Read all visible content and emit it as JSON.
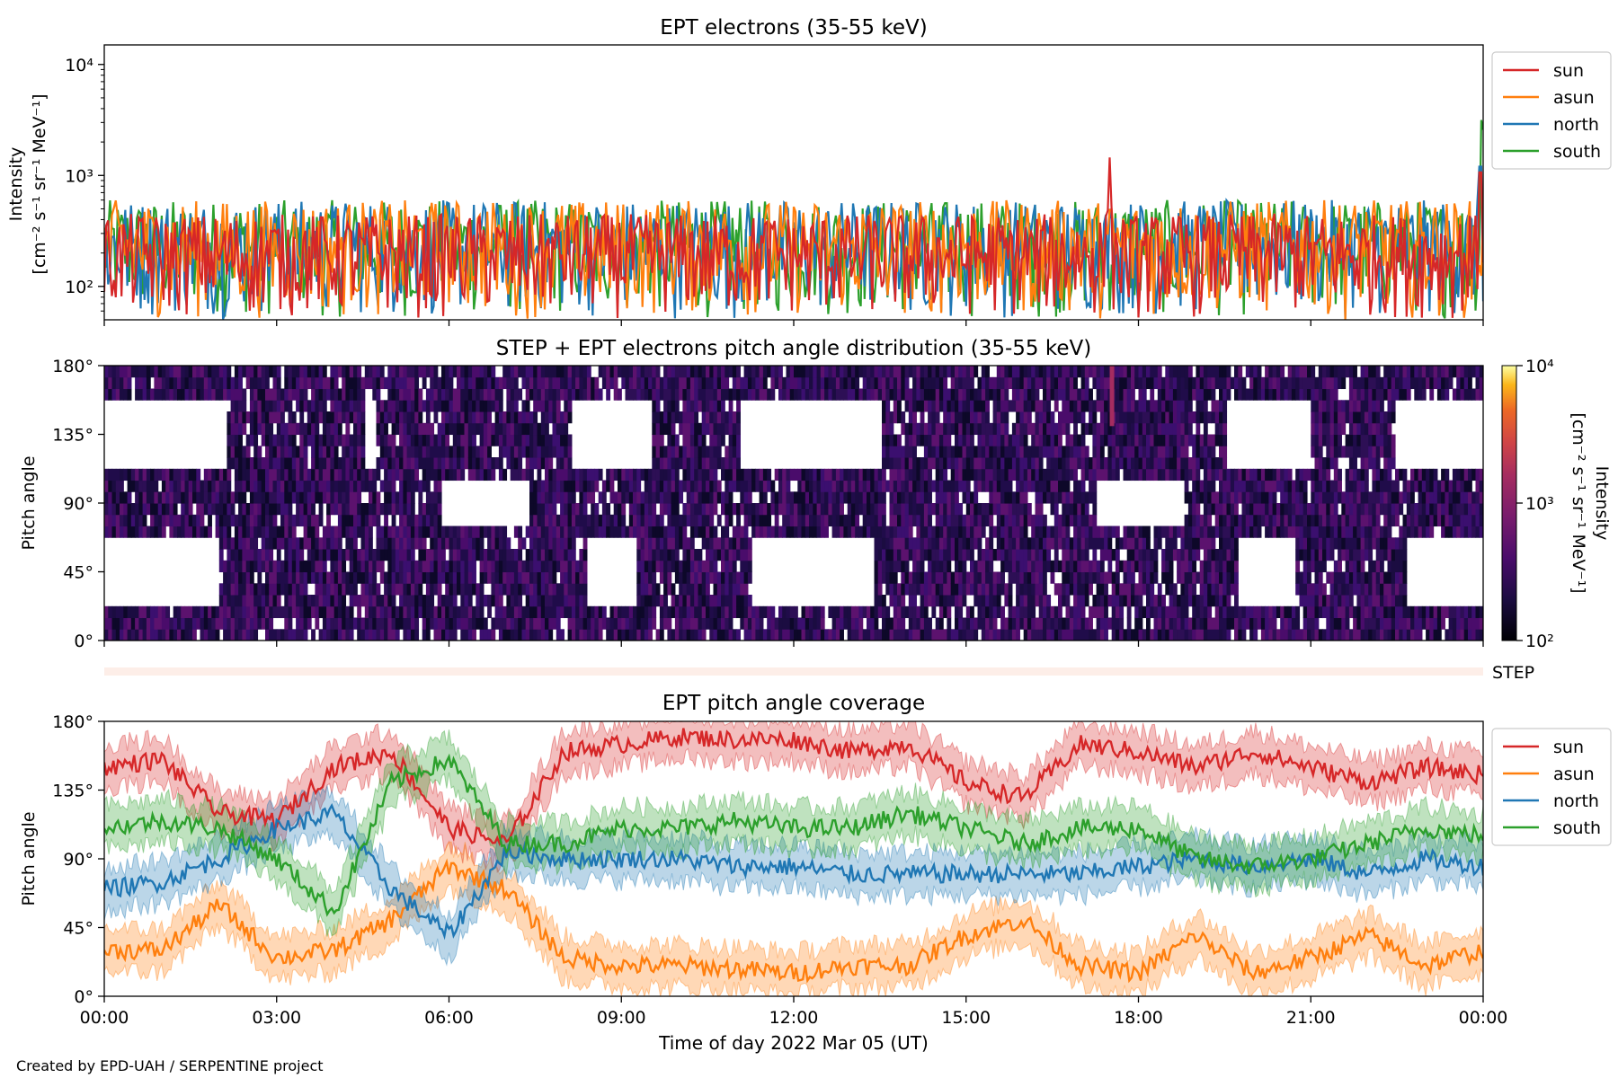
{
  "credit": "Created by EPD-UAH / SERPENTINE project",
  "colors": {
    "sun": "#d62728",
    "asun": "#ff7f0e",
    "north": "#1f77b4",
    "south": "#2ca02c"
  },
  "chart_data": [
    {
      "type": "line",
      "title": "EPT electrons (35-55 keV)",
      "ylabel_line1": "Intensity",
      "ylabel_line2": "[cm⁻² s⁻¹ sr⁻¹ MeV⁻¹]",
      "yscale": "log",
      "ylim": [
        50,
        15000
      ],
      "yticks": [
        {
          "value": 100,
          "label": "10²"
        },
        {
          "value": 1000,
          "label": "10³"
        },
        {
          "value": 10000,
          "label": "10⁴"
        }
      ],
      "xlim_hours": [
        0,
        24
      ],
      "legend": "outside-right",
      "series": [
        {
          "name": "sun",
          "color": "#d62728",
          "typical_range": [
            50,
            450
          ],
          "spikes": [
            {
              "x_hours": 17.5,
              "value": 1450
            },
            {
              "x_hours": 23.95,
              "value": 1600
            }
          ]
        },
        {
          "name": "asun",
          "color": "#ff7f0e",
          "typical_range": [
            50,
            600
          ]
        },
        {
          "name": "north",
          "color": "#1f77b4",
          "typical_range": [
            50,
            600
          ],
          "spikes": [
            {
              "x_hours": 23.95,
              "value": 1800
            }
          ]
        },
        {
          "name": "south",
          "color": "#2ca02c",
          "typical_range": [
            50,
            600
          ],
          "spikes": [
            {
              "x_hours": 23.98,
              "value": 4300
            }
          ]
        }
      ]
    },
    {
      "type": "heatmap",
      "title": "STEP + EPT electrons pitch angle distribution (35-55 keV)",
      "ylabel": "Pitch angle",
      "ylim": [
        0,
        180
      ],
      "yticks": [
        {
          "value": 0,
          "label": "0°"
        },
        {
          "value": 45,
          "label": "45°"
        },
        {
          "value": 90,
          "label": "90°"
        },
        {
          "value": 135,
          "label": "135°"
        },
        {
          "value": 180,
          "label": "180°"
        }
      ],
      "xlim_hours": [
        0,
        24
      ],
      "colorbar": {
        "label_line1": "Intensity",
        "label_line2": "[cm⁻² s⁻¹ sr⁻¹ MeV⁻¹]",
        "scale": "log",
        "range": [
          100,
          10000
        ],
        "ticks": [
          {
            "value": 100,
            "label": "10²"
          },
          {
            "value": 1000,
            "label": "10³"
          },
          {
            "value": 10000,
            "label": "10⁴"
          }
        ],
        "colormap": "inferno"
      },
      "step_label": "STEP"
    },
    {
      "type": "line",
      "title": "EPT pitch angle coverage",
      "ylabel": "Pitch angle",
      "xlabel": "Time of day 2022 Mar 05 (UT)",
      "ylim": [
        0,
        180
      ],
      "yticks": [
        {
          "value": 0,
          "label": "0°"
        },
        {
          "value": 45,
          "label": "45°"
        },
        {
          "value": 90,
          "label": "90°"
        },
        {
          "value": 135,
          "label": "135°"
        },
        {
          "value": 180,
          "label": "180°"
        }
      ],
      "xticks": [
        {
          "value": 0,
          "label": "00:00"
        },
        {
          "value": 3,
          "label": "03:00"
        },
        {
          "value": 6,
          "label": "06:00"
        },
        {
          "value": 9,
          "label": "09:00"
        },
        {
          "value": 12,
          "label": "12:00"
        },
        {
          "value": 15,
          "label": "15:00"
        },
        {
          "value": 18,
          "label": "18:00"
        },
        {
          "value": 21,
          "label": "21:00"
        },
        {
          "value": 24,
          "label": "00:00"
        }
      ],
      "xlim_hours": [
        0,
        24
      ],
      "legend": "outside-right",
      "x_hours": [
        0,
        1,
        2,
        3,
        4,
        5,
        6,
        7,
        8,
        9,
        10,
        11,
        12,
        13,
        14,
        15,
        16,
        17,
        18,
        19,
        20,
        21,
        22,
        23,
        24
      ],
      "series": [
        {
          "name": "sun",
          "color": "#d62728",
          "values": [
            150,
            155,
            120,
            115,
            150,
            160,
            110,
            100,
            160,
            165,
            170,
            168,
            168,
            160,
            165,
            140,
            130,
            165,
            160,
            150,
            160,
            150,
            140,
            150,
            145
          ]
        },
        {
          "name": "asun",
          "color": "#ff7f0e",
          "values": [
            30,
            30,
            60,
            25,
            30,
            50,
            85,
            70,
            25,
            20,
            20,
            18,
            15,
            20,
            20,
            40,
            50,
            20,
            15,
            40,
            15,
            25,
            40,
            20,
            30
          ]
        },
        {
          "name": "north",
          "color": "#1f77b4",
          "values": [
            70,
            75,
            90,
            110,
            120,
            70,
            40,
            95,
            90,
            90,
            90,
            85,
            85,
            80,
            80,
            80,
            80,
            80,
            85,
            90,
            85,
            90,
            80,
            90,
            85
          ]
        },
        {
          "name": "south",
          "color": "#2ca02c",
          "values": [
            110,
            115,
            110,
            90,
            55,
            140,
            155,
            100,
            100,
            110,
            110,
            115,
            110,
            110,
            120,
            110,
            100,
            110,
            110,
            90,
            85,
            90,
            100,
            110,
            105
          ]
        }
      ]
    }
  ]
}
